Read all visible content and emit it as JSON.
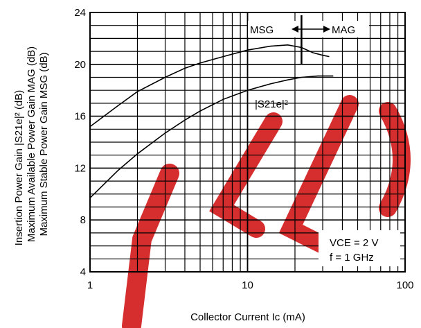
{
  "chart_data": {
    "type": "line",
    "xscale": "log",
    "xlim": [
      1,
      100
    ],
    "ylim": [
      4,
      24
    ],
    "x_ticks": [
      1,
      10,
      100
    ],
    "x_tick_labels": [
      "1",
      "10",
      "100"
    ],
    "y_ticks": [
      4,
      8,
      12,
      16,
      20,
      24
    ],
    "y_tick_labels": [
      "4",
      "8",
      "12",
      "16",
      "20",
      "24"
    ],
    "xlabel": "Collector Current Ic (mA)",
    "ylabel_lines": [
      "Insertion Power Gain |S21e|² (dB)",
      "Maximum Available Power Gain MAG (dB)",
      "Maximum Stable Power Gain MSG (dB)"
    ],
    "grid": true,
    "series": [
      {
        "name": "MSG / MAG",
        "x": [
          1,
          1.5,
          2,
          3,
          4,
          5,
          7,
          10,
          14,
          18,
          22,
          26,
          30,
          33
        ],
        "y": [
          15.2,
          16.8,
          17.9,
          19.0,
          19.7,
          20.1,
          20.6,
          21.1,
          21.4,
          21.5,
          21.3,
          20.9,
          20.7,
          20.6
        ]
      },
      {
        "name": "|S21e|²",
        "x": [
          1,
          1.5,
          2,
          3,
          4,
          5,
          7,
          10,
          14,
          18,
          22,
          28,
          35
        ],
        "y": [
          9.7,
          11.8,
          13.1,
          14.7,
          15.7,
          16.4,
          17.3,
          18.0,
          18.5,
          18.8,
          19.0,
          19.1,
          19.1
        ]
      }
    ],
    "annotations": {
      "msg": "MSG",
      "mag": "MAG",
      "s21": "|S21e|²",
      "conditions": [
        "VCE = 2 V",
        "f = 1 GHz"
      ]
    },
    "boundary_x": 22
  },
  "colors": {
    "line": "#000000",
    "watermark": "#d62e2e"
  }
}
